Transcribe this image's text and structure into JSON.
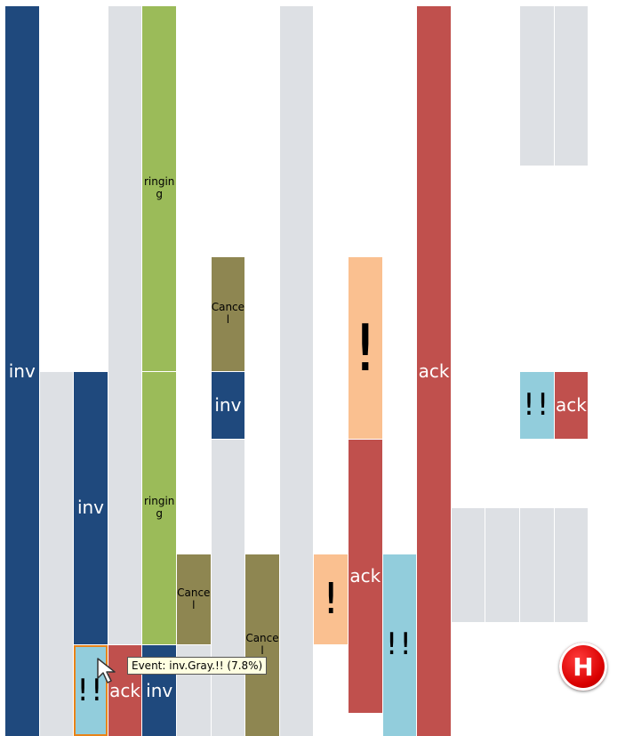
{
  "chart_data": {
    "type": "icicle",
    "colors": {
      "inv": "#1f497d",
      "ringing": "#9bbb59",
      "cancel": "#8e8651",
      "gray": "#dde0e4",
      "ack": "#c0504d",
      "bang": "#92cddc",
      "excl": "#fac090"
    },
    "cells": [
      {
        "col": 0,
        "row0": 0,
        "rows": 4,
        "label": "inv",
        "kind": "inv"
      },
      {
        "col": 1,
        "row0": 2,
        "rows": 2,
        "label": "",
        "kind": "gray"
      },
      {
        "col": 2,
        "row0": 2,
        "rows": 1.5,
        "label": "inv",
        "kind": "inv"
      },
      {
        "col": 2,
        "row0": 3.5,
        "rows": 0.5,
        "label": "!!",
        "kind": "bang",
        "selected": true
      },
      {
        "col": 3,
        "row0": 0,
        "rows": 3.5,
        "label": "",
        "kind": "gray"
      },
      {
        "col": 3,
        "row0": 3.5,
        "rows": 0.5,
        "label": "ack",
        "kind": "ack"
      },
      {
        "col": 4,
        "row0": 0,
        "rows": 2,
        "label": "ringing",
        "kind": "ringing"
      },
      {
        "col": 4,
        "row0": 2,
        "rows": 1.5,
        "label": "ringing",
        "kind": "ringing"
      },
      {
        "col": 4,
        "row0": 3.5,
        "rows": 0.5,
        "label": "inv",
        "kind": "inv"
      },
      {
        "col": 5,
        "row0": 3,
        "rows": 0.5,
        "label": "Cancel",
        "kind": "cancel"
      },
      {
        "col": 5,
        "row0": 3.5,
        "rows": 0.5,
        "label": "",
        "kind": "gray"
      },
      {
        "col": 6,
        "row0": 1.375,
        "rows": 0.625,
        "label": "Cancel",
        "kind": "cancel"
      },
      {
        "col": 6,
        "row0": 2,
        "rows": 0.375,
        "label": "inv",
        "kind": "inv"
      },
      {
        "col": 6,
        "row0": 2.375,
        "rows": 1.625,
        "label": "",
        "kind": "gray"
      },
      {
        "col": 7,
        "row0": 3,
        "rows": 1,
        "label": "Cancel",
        "kind": "cancel"
      },
      {
        "col": 8,
        "row0": 0,
        "rows": 4,
        "label": "",
        "kind": "gray"
      },
      {
        "col": 9,
        "row0": 3,
        "rows": 0.5,
        "label": "!",
        "kind": "excl"
      },
      {
        "col": 10,
        "row0": 1.375,
        "rows": 1,
        "label": "!",
        "kind": "excl"
      },
      {
        "col": 10,
        "row0": 2.375,
        "rows": 1.5,
        "label": "ack",
        "kind": "ack"
      },
      {
        "col": 11,
        "row0": 3,
        "rows": 1,
        "label": "!!",
        "kind": "bang"
      },
      {
        "col": 12,
        "row0": 0,
        "rows": 4,
        "label": "ack",
        "kind": "ack"
      },
      {
        "col": 13,
        "row0": 2.75,
        "rows": 0.625,
        "label": "",
        "kind": "gray"
      },
      {
        "col": 14,
        "row0": 2.75,
        "rows": 0.625,
        "label": "",
        "kind": "gray"
      },
      {
        "col": 15,
        "row0": 0,
        "rows": 0.875,
        "label": "",
        "kind": "gray"
      },
      {
        "col": 15,
        "row0": 2,
        "rows": 0.375,
        "label": "!!",
        "kind": "bang"
      },
      {
        "col": 15,
        "row0": 2.75,
        "rows": 0.625,
        "label": "",
        "kind": "gray"
      },
      {
        "col": 16,
        "row0": 0,
        "rows": 0.875,
        "label": "",
        "kind": "gray"
      },
      {
        "col": 16,
        "row0": 2,
        "rows": 0.375,
        "label": "ack",
        "kind": "ack"
      },
      {
        "col": 16,
        "row0": 2.75,
        "rows": 0.625,
        "label": "",
        "kind": "gray"
      }
    ],
    "tooltip": "Event: inv.Gray.!! (7.8%)"
  },
  "controls": {
    "h_button_label": "H"
  }
}
